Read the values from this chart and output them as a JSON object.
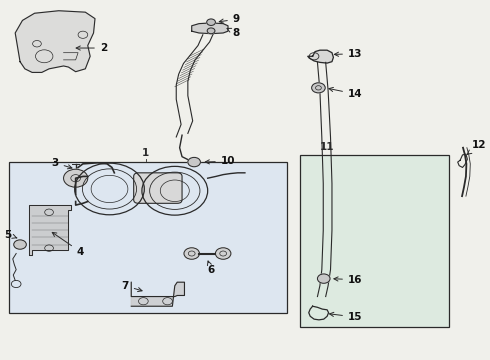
{
  "bg_color": "#f0f0eb",
  "line_color": "#2a2a2a",
  "box_bg": "#dde6f0",
  "box_bg2": "#ddeae0",
  "label_color": "#111111",
  "fig_width": 4.9,
  "fig_height": 3.6,
  "dpi": 100
}
